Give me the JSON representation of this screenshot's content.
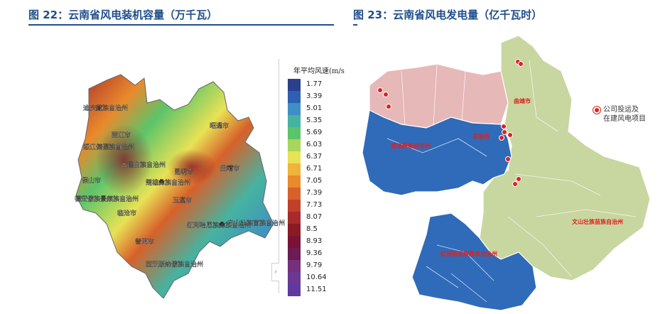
{
  "figures": [
    {
      "title": "图 22：云南省风电装机容量（万千瓦）"
    },
    {
      "title": "图 23：云南省风电发电量（亿千瓦时）"
    }
  ],
  "left_map": {
    "legend_title": "年平均风速(m/s",
    "legend": [
      {
        "value": "1.77",
        "color": "#2b3f8f"
      },
      {
        "value": "3.39",
        "color": "#2f5fb0"
      },
      {
        "value": "5.01",
        "color": "#3e8fc4"
      },
      {
        "value": "5.35",
        "color": "#46b3a0"
      },
      {
        "value": "5.69",
        "color": "#5cc46a"
      },
      {
        "value": "6.03",
        "color": "#a9d65a"
      },
      {
        "value": "6.37",
        "color": "#e8e255"
      },
      {
        "value": "6.71",
        "color": "#f0b43a"
      },
      {
        "value": "7.05",
        "color": "#e98a2c"
      },
      {
        "value": "7.39",
        "color": "#d7612a"
      },
      {
        "value": "7.73",
        "color": "#c2402a"
      },
      {
        "value": "8.07",
        "color": "#a82a2a"
      },
      {
        "value": "8.5",
        "color": "#8a1a24"
      },
      {
        "value": "8.93",
        "color": "#7a1236"
      },
      {
        "value": "9.36",
        "color": "#6b1c52"
      },
      {
        "value": "9.79",
        "color": "#74307a"
      },
      {
        "value": "10.64",
        "color": "#6a3a92"
      },
      {
        "value": "11.51",
        "color": "#5e3aa0"
      }
    ],
    "labels": [
      "迪庆藏族自治州",
      "丽江市",
      "怒江傈僳族自治州",
      "大理白族自治州",
      "楚雄彝族自治州",
      "昆明市",
      "曲靖市",
      "昭通市",
      "保山市",
      "德宏傣族景颇族自治州",
      "临沧市",
      "普洱市",
      "玉溪市",
      "红河哈尼族彝族自治州",
      "文山壮族苗族自治州",
      "西双版纳傣族自治州"
    ]
  },
  "right_map": {
    "legend_line1": "公司投运及",
    "legend_line2": "在建风电项目",
    "region_labels": [
      "曲靖市",
      "楚雄彝族自治州",
      "昆明市",
      "文山壮族苗族自治州",
      "红河哈尼族彝族自治州"
    ],
    "colors": {
      "pink": "#e7b8b8",
      "blue": "#2f6bb8",
      "green": "#c8d6a0",
      "marker": "#e02020"
    }
  }
}
